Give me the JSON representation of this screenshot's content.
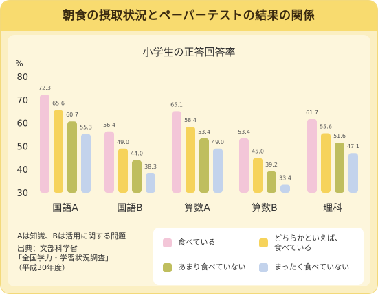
{
  "header": {
    "title": "朝食の摂取状況とペーパーテストの結果の関係"
  },
  "notes": {
    "line1": "Aは知識、Bは活用に関する問題",
    "line2": "出典：文部科学省",
    "line3": "「全国学力・学習状況調査」",
    "line4": "（平成30年度）"
  },
  "colors": {
    "header_bg": "#f8db6f",
    "panel_bg": "#fbefc2",
    "series": [
      "#f3c6d8",
      "#f6d35b",
      "#bfbe5e",
      "#c3d3ec"
    ]
  },
  "chart_data": {
    "type": "bar",
    "title": "小学生の正答回答率",
    "ylabel": "%",
    "ylim": [
      30,
      80
    ],
    "yticks": [
      30,
      40,
      50,
      60,
      70,
      80
    ],
    "categories": [
      "国語A",
      "国語B",
      "算数A",
      "算数B",
      "理科"
    ],
    "series": [
      {
        "name": "食べている",
        "values": [
          72.3,
          56.4,
          65.1,
          53.4,
          61.7
        ]
      },
      {
        "name": "どちらかといえば、食べている",
        "values": [
          65.6,
          49.0,
          58.4,
          45.0,
          55.6
        ]
      },
      {
        "name": "あまり食べていない",
        "values": [
          60.7,
          44.0,
          53.4,
          39.2,
          51.6
        ]
      },
      {
        "name": "まったく食べていない",
        "values": [
          55.3,
          38.3,
          49.0,
          33.4,
          47.1
        ]
      }
    ],
    "legend": [
      {
        "lines": [
          "食べている"
        ]
      },
      {
        "lines": [
          "どちらかといえば、",
          "食べている"
        ]
      },
      {
        "lines": [
          "あまり食べていない"
        ]
      },
      {
        "lines": [
          "まったく食べていない"
        ]
      }
    ],
    "value_labels": [
      [
        "72.3",
        "56.4",
        "65.1",
        "53.4",
        "61.7"
      ],
      [
        "65.6",
        "49.0",
        "58.4",
        "45.0",
        "55.6"
      ],
      [
        "60.7",
        "44.0",
        "53.4",
        "39.2",
        "51.6"
      ],
      [
        "55.3",
        "38.3",
        "49.0",
        "33.4",
        "47.1"
      ]
    ],
    "grid": false,
    "legend_position": "bottom-right"
  }
}
